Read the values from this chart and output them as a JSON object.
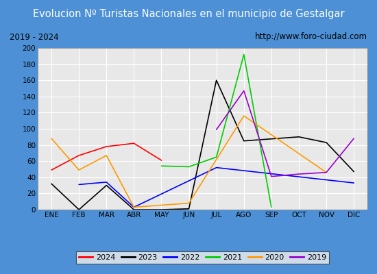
{
  "title": "Evolucion Nº Turistas Nacionales en el municipio de Gestalgar",
  "subtitle_left": "2019 - 2024",
  "subtitle_right": "http://www.foro-ciudad.com",
  "months": [
    "ENE",
    "FEB",
    "MAR",
    "ABR",
    "MAY",
    "JUN",
    "JUL",
    "AGO",
    "SEP",
    "OCT",
    "NOV",
    "DIC"
  ],
  "ylim": [
    0,
    200
  ],
  "yticks": [
    0,
    20,
    40,
    60,
    80,
    100,
    120,
    140,
    160,
    180,
    200
  ],
  "series": {
    "2024": {
      "color": "#ff0000",
      "data": [
        49,
        67,
        78,
        82,
        61,
        null,
        null,
        null,
        null,
        null,
        null,
        null
      ]
    },
    "2023": {
      "color": "#000000",
      "data": [
        32,
        0,
        30,
        0,
        0,
        1,
        160,
        85,
        null,
        90,
        83,
        47
      ]
    },
    "2022": {
      "color": "#0000ff",
      "data": [
        null,
        31,
        34,
        3,
        null,
        null,
        52,
        null,
        null,
        null,
        null,
        33
      ]
    },
    "2021": {
      "color": "#00cc00",
      "data": [
        null,
        null,
        null,
        null,
        54,
        53,
        65,
        192,
        3,
        null,
        null,
        null
      ]
    },
    "2020": {
      "color": "#ff9900",
      "data": [
        88,
        49,
        67,
        3,
        null,
        8,
        null,
        116,
        null,
        null,
        46,
        null
      ]
    },
    "2019": {
      "color": "#9900cc",
      "data": [
        null,
        null,
        null,
        null,
        null,
        null,
        99,
        147,
        41,
        44,
        46,
        88
      ]
    }
  },
  "title_bg": "#4d90d5",
  "title_color": "#ffffff",
  "subtitle_bg": "#f0f0f0",
  "plot_bg": "#e8e8e8",
  "outer_bg": "#4d90d5",
  "grid_color": "#ffffff",
  "legend_order": [
    "2024",
    "2023",
    "2022",
    "2021",
    "2020",
    "2019"
  ],
  "title_fontsize": 10.5,
  "subtitle_fontsize": 8.5,
  "tick_fontsize": 7.5
}
